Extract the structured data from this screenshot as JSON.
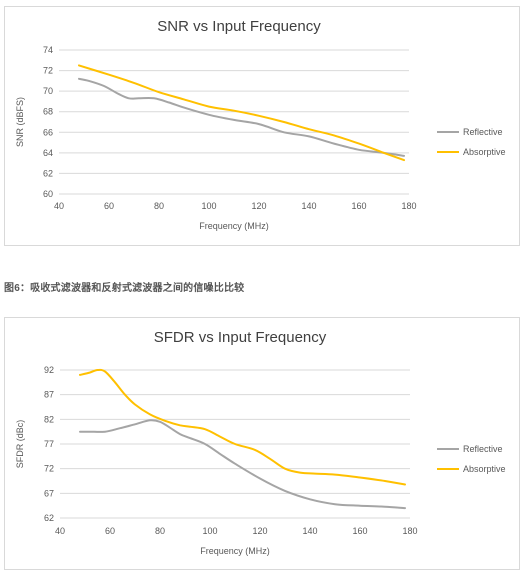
{
  "caption": "图6：吸收式滤波器和反射式滤波器之间的信噪比比较",
  "colors": {
    "reflective": "#a5a5a5",
    "absorptive": "#ffc000",
    "grid": "#d9d9d9"
  },
  "chart_data": [
    {
      "type": "line",
      "title": "SNR vs Input Frequency",
      "xlabel": "Frequency (MHz)",
      "ylabel": "SNR (dBFS)",
      "xlim": [
        40,
        180
      ],
      "ylim": [
        60,
        74
      ],
      "xticks": [
        40,
        60,
        80,
        100,
        120,
        140,
        160,
        180
      ],
      "yticks": [
        60,
        62,
        64,
        66,
        68,
        70,
        72,
        74
      ],
      "grid": true,
      "legend": "right",
      "series": [
        {
          "name": "Reflective",
          "color": "#a5a5a5",
          "x": [
            48,
            52,
            58,
            64,
            68,
            72,
            78,
            84,
            90,
            100,
            110,
            120,
            130,
            140,
            150,
            160,
            170,
            178
          ],
          "y": [
            71.2,
            71.0,
            70.5,
            69.7,
            69.3,
            69.3,
            69.3,
            68.9,
            68.4,
            67.7,
            67.2,
            66.8,
            66.0,
            65.6,
            64.9,
            64.3,
            64.0,
            63.7
          ]
        },
        {
          "name": "Absorptive",
          "color": "#ffc000",
          "x": [
            48,
            60,
            70,
            80,
            90,
            100,
            110,
            120,
            130,
            140,
            150,
            160,
            170,
            178
          ],
          "y": [
            72.5,
            71.6,
            70.8,
            69.9,
            69.2,
            68.5,
            68.1,
            67.6,
            67.0,
            66.3,
            65.7,
            64.9,
            64.0,
            63.3
          ]
        }
      ]
    },
    {
      "type": "line",
      "title": "SFDR vs Input Frequency",
      "xlabel": "Frequency (MHz)",
      "ylabel": "SFDR (dBc)",
      "xlim": [
        40,
        180
      ],
      "ylim": [
        62,
        92
      ],
      "xticks": [
        40,
        60,
        80,
        100,
        120,
        140,
        160,
        180
      ],
      "yticks": [
        62,
        67,
        72,
        77,
        82,
        87,
        92
      ],
      "grid": true,
      "legend": "right",
      "series": [
        {
          "name": "Reflective",
          "color": "#a5a5a5",
          "x": [
            48,
            52,
            58,
            64,
            70,
            76,
            80,
            84,
            88,
            92,
            98,
            104,
            110,
            120,
            130,
            140,
            150,
            160,
            170,
            178
          ],
          "y": [
            79.5,
            79.5,
            79.5,
            80.2,
            81.0,
            81.8,
            81.5,
            80.3,
            79.0,
            78.2,
            77.0,
            75.0,
            73.0,
            70.0,
            67.5,
            65.8,
            64.8,
            64.5,
            64.3,
            64.0
          ]
        },
        {
          "name": "Absorptive",
          "color": "#ffc000",
          "x": [
            48,
            52,
            55,
            58,
            62,
            66,
            70,
            76,
            82,
            88,
            92,
            98,
            104,
            110,
            118,
            124,
            130,
            136,
            142,
            150,
            160,
            170,
            178
          ],
          "y": [
            91.0,
            91.5,
            92.0,
            91.7,
            89.5,
            87.0,
            85.0,
            83.0,
            81.7,
            80.8,
            80.5,
            80.0,
            78.5,
            77.0,
            75.8,
            74.0,
            72.0,
            71.2,
            71.0,
            70.8,
            70.2,
            69.5,
            68.8
          ]
        }
      ]
    }
  ]
}
